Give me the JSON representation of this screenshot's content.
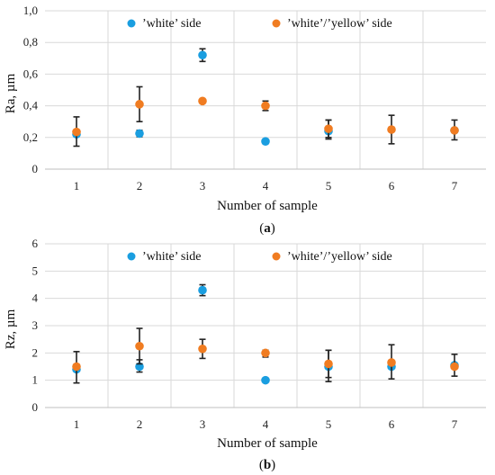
{
  "chart_data": [
    {
      "type": "scatter",
      "panel_label": "(a)",
      "panel_letter": "a",
      "xlabel": "Number of sample",
      "ylabel": "Ra, µm",
      "x": [
        1,
        2,
        3,
        4,
        5,
        6,
        7
      ],
      "xlim": [
        0.5,
        7.5
      ],
      "ylim": [
        0,
        1.0
      ],
      "yticks": [
        "0",
        "0,2",
        "0,4",
        "0,6",
        "0,8",
        "1,0"
      ],
      "ytick_values": [
        0,
        0.2,
        0.4,
        0.6,
        0.8,
        1.0
      ],
      "grid": true,
      "legend_position": "top",
      "series": [
        {
          "name": "’white’ side",
          "color": "#1a9ee0",
          "values": [
            0.22,
            0.225,
            0.72,
            0.175,
            0.24,
            null,
            0.245
          ],
          "err_low": [
            null,
            0.205,
            0.68,
            null,
            0.19,
            null,
            null
          ],
          "err_high": [
            null,
            0.245,
            0.76,
            null,
            0.31,
            null,
            null
          ]
        },
        {
          "name": "’white’/’yellow’ side",
          "color": "#f07c21",
          "values": [
            0.235,
            0.41,
            0.43,
            0.4,
            0.255,
            0.25,
            0.245
          ],
          "err_low": [
            0.145,
            0.3,
            null,
            0.37,
            0.2,
            0.16,
            0.185
          ],
          "err_high": [
            0.33,
            0.52,
            null,
            0.43,
            0.31,
            0.34,
            0.31
          ]
        }
      ]
    },
    {
      "type": "scatter",
      "panel_label": "(b)",
      "panel_letter": "b",
      "xlabel": "Number of sample",
      "ylabel": "Rz, µm",
      "x": [
        1,
        2,
        3,
        4,
        5,
        6,
        7
      ],
      "xlim": [
        0.5,
        7.5
      ],
      "ylim": [
        0,
        6
      ],
      "yticks": [
        "0",
        "1",
        "2",
        "3",
        "4",
        "5",
        "6"
      ],
      "ytick_values": [
        0,
        1,
        2,
        3,
        4,
        5,
        6
      ],
      "grid": true,
      "legend_position": "top",
      "series": [
        {
          "name": "’white’ side",
          "color": "#1a9ee0",
          "values": [
            1.4,
            1.5,
            4.3,
            1.0,
            1.5,
            1.5,
            1.55
          ],
          "err_low": [
            null,
            1.3,
            4.1,
            null,
            0.95,
            null,
            null
          ],
          "err_high": [
            null,
            1.75,
            4.5,
            null,
            2.1,
            null,
            null
          ]
        },
        {
          "name": "’white’/’yellow’ side",
          "color": "#f07c21",
          "values": [
            1.5,
            2.25,
            2.15,
            2.0,
            1.6,
            1.65,
            1.5
          ],
          "err_low": [
            0.9,
            1.6,
            1.8,
            1.85,
            1.1,
            1.05,
            1.15
          ],
          "err_high": [
            2.05,
            2.9,
            2.5,
            2.1,
            2.1,
            2.3,
            1.95
          ]
        }
      ]
    }
  ]
}
